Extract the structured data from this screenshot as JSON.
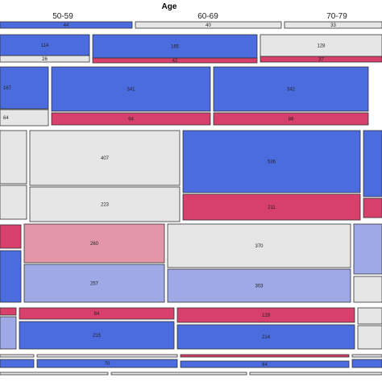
{
  "chart_data": {
    "type": "mosaic",
    "title": "",
    "x_axis": {
      "title": "Age",
      "categories": [
        "50-59",
        "60-69",
        "70-79"
      ]
    },
    "cells": [
      {
        "col": "50-59",
        "row": 0,
        "value": 44,
        "color": "#4a6cdf"
      },
      {
        "col": "60-69",
        "row": 0,
        "value": 40,
        "color": "#e6e6e6"
      },
      {
        "col": "70-79",
        "row": 0,
        "value": 33,
        "color": "#e6e6e6"
      },
      {
        "col": "50-59",
        "row": 1,
        "value": 114,
        "color": "#4a6cdf"
      },
      {
        "col": "60-69",
        "row": 1,
        "value": 165,
        "color": "#4a6cdf"
      },
      {
        "col": "70-79",
        "row": 1,
        "value": 128,
        "color": "#e6e6e6"
      },
      {
        "col": "50-59",
        "row": 2,
        "value": 26,
        "color": "#e6e6e6"
      },
      {
        "col": "60-69",
        "row": 2,
        "value": 42,
        "color": "#d6406b"
      },
      {
        "col": "70-79",
        "row": 2,
        "value": 37,
        "color": "#d6406b"
      },
      {
        "col": "prev",
        "row": 3,
        "value": 167,
        "color": "#4a6cdf"
      },
      {
        "col": "50-59",
        "row": 3,
        "value": 341,
        "color": "#4a6cdf"
      },
      {
        "col": "60-69",
        "row": 3,
        "value": 342,
        "color": "#4a6cdf"
      },
      {
        "col": "prev",
        "row": 4,
        "value": 64,
        "color": "#e6e6e6"
      },
      {
        "col": "50-59",
        "row": 4,
        "value": 94,
        "color": "#d6406b"
      },
      {
        "col": "60-69",
        "row": 4,
        "value": 86,
        "color": "#d6406b"
      },
      {
        "col": "50-59",
        "row": 5,
        "value": 407,
        "color": "#e6e6e6"
      },
      {
        "col": "60-69",
        "row": 5,
        "value": 536,
        "color": "#4a6cdf"
      },
      {
        "col": "50-59",
        "row": 6,
        "value": 223,
        "color": "#e6e6e6"
      },
      {
        "col": "60-69",
        "row": 6,
        "value": 211,
        "color": "#d6406b"
      },
      {
        "col": "50-59",
        "row": 7,
        "value": 260,
        "color": "#e396a8"
      },
      {
        "col": "60-69",
        "row": 7,
        "value": 370,
        "color": "#e6e6e6"
      },
      {
        "col": "50-59",
        "row": 8,
        "value": 257,
        "color": "#9ea9e6"
      },
      {
        "col": "60-69",
        "row": 8,
        "value": 303,
        "color": "#9ea9e6"
      },
      {
        "col": "50-59",
        "row": 9,
        "value": 84,
        "color": "#d6406b"
      },
      {
        "col": "60-69",
        "row": 9,
        "value": 129,
        "color": "#d6406b"
      },
      {
        "col": "50-59",
        "row": 10,
        "value": 215,
        "color": "#4a6cdf"
      },
      {
        "col": "60-69",
        "row": 10,
        "value": 214,
        "color": "#4a6cdf"
      },
      {
        "col": "50-59",
        "row": 11,
        "value": 70,
        "color": "#4a6cdf"
      },
      {
        "col": "60-69",
        "row": 11,
        "value": 84,
        "color": "#4a6cdf"
      }
    ],
    "colors": {
      "strong_positive": "#4a6cdf",
      "weak_positive": "#9ea9e6",
      "neutral": "#e6e6e6",
      "weak_negative": "#e396a8",
      "strong_negative": "#d6406b"
    }
  }
}
